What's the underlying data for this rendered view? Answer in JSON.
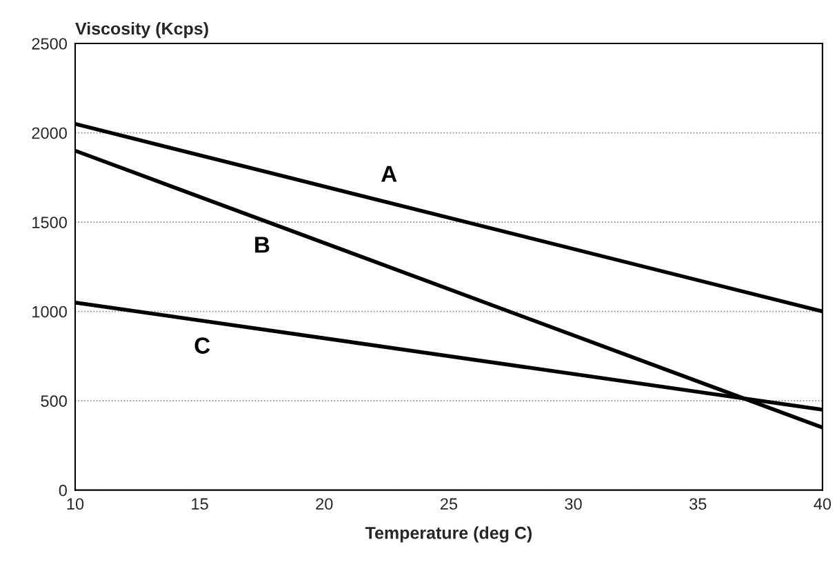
{
  "chart_data": {
    "type": "line",
    "ylabel": "Viscosity (Kcps)",
    "xlabel": "Temperature (deg C)",
    "x": [
      10,
      40
    ],
    "series": [
      {
        "name": "A",
        "color": "#000000",
        "values": [
          2050,
          1000
        ]
      },
      {
        "name": "B",
        "color": "#000000",
        "values": [
          1900,
          350
        ]
      },
      {
        "name": "C",
        "color": "#000000",
        "values": [
          1050,
          450
        ]
      }
    ],
    "xlim": [
      10,
      40
    ],
    "xticks": [
      10,
      15,
      20,
      25,
      30,
      35,
      40
    ],
    "ylim": [
      0,
      2500
    ],
    "yticks": [
      0,
      500,
      1000,
      1500,
      2000,
      2500
    ],
    "grid": "y",
    "line_style": "solid",
    "marker": "none",
    "legend": false
  }
}
